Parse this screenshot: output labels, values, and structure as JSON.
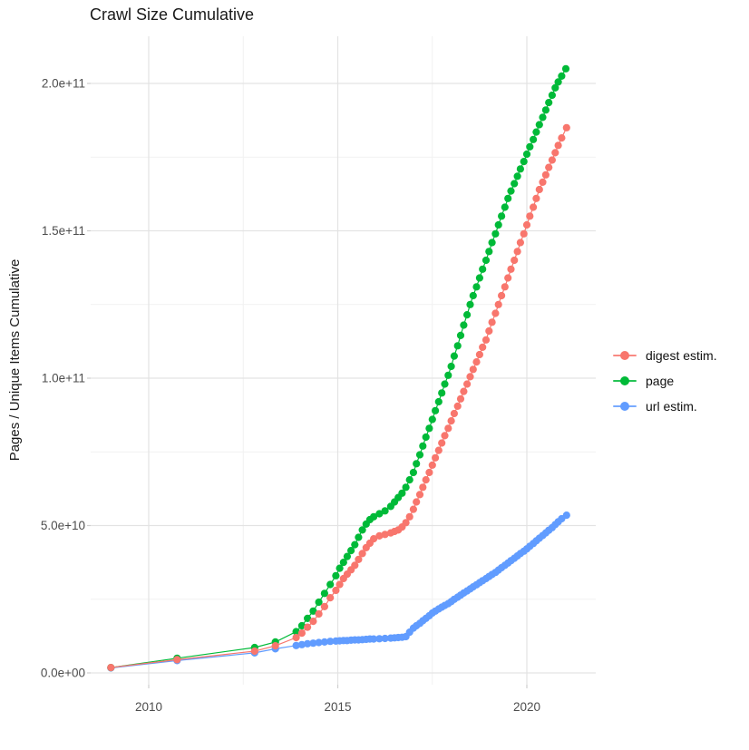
{
  "title": "Crawl Size Cumulative",
  "colors": {
    "digest": "#F8766D",
    "page": "#00BA38",
    "url": "#619CFF",
    "grid_major": "#E3E3E3",
    "grid_minor": "#F1F1F1",
    "tick_text": "#4d4d4d"
  },
  "axes": {
    "y_title": "Pages / Unique Items Cumulative",
    "x_ticks": [
      {
        "label": "2010",
        "year": 2010
      },
      {
        "label": "2015",
        "year": 2015
      },
      {
        "label": "2020",
        "year": 2020
      }
    ],
    "x_minor_years": [
      2012.5,
      2017.5
    ],
    "y_ticks": [
      {
        "label": "0.0e+00",
        "value_b": 0
      },
      {
        "label": "5.0e+10",
        "value_b": 50
      },
      {
        "label": "1.0e+11",
        "value_b": 100
      },
      {
        "label": "1.5e+11",
        "value_b": 150
      },
      {
        "label": "2.0e+11",
        "value_b": 200
      }
    ],
    "y_minor_b": [
      25,
      75,
      125,
      175
    ]
  },
  "legend": {
    "items": [
      {
        "label": "digest estim.",
        "color": "#F8766D"
      },
      {
        "label": "page",
        "color": "#00BA38"
      },
      {
        "label": "url estim.",
        "color": "#619CFF"
      }
    ]
  },
  "chart_data": {
    "type": "scatter",
    "title": "Crawl Size Cumulative",
    "xlabel": "",
    "ylabel": "Pages / Unique Items Cumulative",
    "x_range_years": [
      2008.4,
      2021.8
    ],
    "y_range": [
      0,
      220000000000.0
    ],
    "value_unit": "items, stored as billions (multiply by 1e9)",
    "grid": true,
    "legend_position": "right",
    "series": [
      {
        "name": "digest estim.",
        "color": "#F8766D",
        "points": [
          [
            2009.0,
            1.8
          ],
          [
            2010.75,
            4.5
          ],
          [
            2012.8,
            7.4
          ],
          [
            2013.35,
            9.2
          ],
          [
            2013.9,
            12.0
          ],
          [
            2014.05,
            13.5
          ],
          [
            2014.2,
            15.5
          ],
          [
            2014.35,
            17.5
          ],
          [
            2014.5,
            20.0
          ],
          [
            2014.65,
            22.5
          ],
          [
            2014.8,
            25.5
          ],
          [
            2014.95,
            28.0
          ],
          [
            2015.05,
            30.0
          ],
          [
            2015.15,
            32.0
          ],
          [
            2015.25,
            33.5
          ],
          [
            2015.35,
            35.0
          ],
          [
            2015.45,
            36.5
          ],
          [
            2015.55,
            38.5
          ],
          [
            2015.65,
            40.5
          ],
          [
            2015.75,
            42.5
          ],
          [
            2015.85,
            44.0
          ],
          [
            2015.95,
            45.5
          ],
          [
            2016.1,
            46.5
          ],
          [
            2016.25,
            47.0
          ],
          [
            2016.4,
            47.5
          ],
          [
            2016.5,
            48.0
          ],
          [
            2016.6,
            48.5
          ],
          [
            2016.7,
            49.5
          ],
          [
            2016.8,
            51.0
          ],
          [
            2016.9,
            53.0
          ],
          [
            2017.0,
            55.5
          ],
          [
            2017.08,
            58.0
          ],
          [
            2017.17,
            60.5
          ],
          [
            2017.25,
            63.0
          ],
          [
            2017.33,
            65.5
          ],
          [
            2017.42,
            68.0
          ],
          [
            2017.5,
            70.5
          ],
          [
            2017.58,
            73.0
          ],
          [
            2017.67,
            75.5
          ],
          [
            2017.75,
            78.0
          ],
          [
            2017.83,
            80.5
          ],
          [
            2017.92,
            83.0
          ],
          [
            2018.0,
            85.5
          ],
          [
            2018.08,
            88.0
          ],
          [
            2018.17,
            90.5
          ],
          [
            2018.25,
            93.0
          ],
          [
            2018.33,
            95.5
          ],
          [
            2018.42,
            98.0
          ],
          [
            2018.5,
            100.5
          ],
          [
            2018.58,
            103.0
          ],
          [
            2018.67,
            105.5
          ],
          [
            2018.75,
            108.0
          ],
          [
            2018.83,
            110.5
          ],
          [
            2018.92,
            113.0
          ],
          [
            2019.0,
            116.0
          ],
          [
            2019.08,
            119.0
          ],
          [
            2019.17,
            122.0
          ],
          [
            2019.25,
            125.0
          ],
          [
            2019.33,
            128.0
          ],
          [
            2019.42,
            131.0
          ],
          [
            2019.5,
            134.0
          ],
          [
            2019.58,
            137.0
          ],
          [
            2019.67,
            140.0
          ],
          [
            2019.75,
            143.0
          ],
          [
            2019.83,
            146.0
          ],
          [
            2019.92,
            149.0
          ],
          [
            2020.0,
            152.0
          ],
          [
            2020.08,
            155.0
          ],
          [
            2020.17,
            158.0
          ],
          [
            2020.25,
            161.0
          ],
          [
            2020.33,
            164.0
          ],
          [
            2020.42,
            166.5
          ],
          [
            2020.5,
            169.0
          ],
          [
            2020.58,
            171.5
          ],
          [
            2020.67,
            174.0
          ],
          [
            2020.75,
            176.5
          ],
          [
            2020.83,
            179.0
          ],
          [
            2020.92,
            181.5
          ],
          [
            2021.05,
            185.0
          ]
        ]
      },
      {
        "name": "page",
        "color": "#00BA38",
        "points": [
          [
            2009.0,
            1.8
          ],
          [
            2010.75,
            5.0
          ],
          [
            2012.8,
            8.6
          ],
          [
            2013.35,
            10.5
          ],
          [
            2013.9,
            14.0
          ],
          [
            2014.05,
            16.0
          ],
          [
            2014.2,
            18.5
          ],
          [
            2014.35,
            21.0
          ],
          [
            2014.5,
            24.0
          ],
          [
            2014.65,
            27.0
          ],
          [
            2014.8,
            30.0
          ],
          [
            2014.95,
            33.0
          ],
          [
            2015.05,
            35.5
          ],
          [
            2015.15,
            37.5
          ],
          [
            2015.25,
            39.5
          ],
          [
            2015.35,
            41.5
          ],
          [
            2015.45,
            43.5
          ],
          [
            2015.55,
            46.0
          ],
          [
            2015.65,
            48.5
          ],
          [
            2015.75,
            50.5
          ],
          [
            2015.85,
            52.0
          ],
          [
            2015.95,
            53.0
          ],
          [
            2016.1,
            54.0
          ],
          [
            2016.25,
            55.0
          ],
          [
            2016.4,
            56.5
          ],
          [
            2016.5,
            58.0
          ],
          [
            2016.6,
            59.5
          ],
          [
            2016.7,
            61.0
          ],
          [
            2016.8,
            63.0
          ],
          [
            2016.9,
            65.5
          ],
          [
            2017.0,
            68.0
          ],
          [
            2017.08,
            71.0
          ],
          [
            2017.17,
            74.0
          ],
          [
            2017.25,
            77.0
          ],
          [
            2017.33,
            80.0
          ],
          [
            2017.42,
            83.0
          ],
          [
            2017.5,
            86.0
          ],
          [
            2017.58,
            89.0
          ],
          [
            2017.67,
            92.0
          ],
          [
            2017.75,
            95.0
          ],
          [
            2017.83,
            98.0
          ],
          [
            2017.92,
            101.0
          ],
          [
            2018.0,
            104.0
          ],
          [
            2018.08,
            107.5
          ],
          [
            2018.17,
            111.0
          ],
          [
            2018.25,
            114.5
          ],
          [
            2018.33,
            118.0
          ],
          [
            2018.42,
            121.5
          ],
          [
            2018.5,
            125.0
          ],
          [
            2018.58,
            128.0
          ],
          [
            2018.67,
            131.0
          ],
          [
            2018.75,
            134.0
          ],
          [
            2018.83,
            137.0
          ],
          [
            2018.92,
            140.0
          ],
          [
            2019.0,
            143.0
          ],
          [
            2019.08,
            146.0
          ],
          [
            2019.17,
            149.0
          ],
          [
            2019.25,
            152.0
          ],
          [
            2019.33,
            155.0
          ],
          [
            2019.42,
            158.0
          ],
          [
            2019.5,
            161.0
          ],
          [
            2019.58,
            163.5
          ],
          [
            2019.67,
            166.0
          ],
          [
            2019.75,
            168.5
          ],
          [
            2019.83,
            171.0
          ],
          [
            2019.92,
            173.5
          ],
          [
            2020.0,
            176.0
          ],
          [
            2020.08,
            178.5
          ],
          [
            2020.17,
            181.0
          ],
          [
            2020.25,
            183.5
          ],
          [
            2020.33,
            186.0
          ],
          [
            2020.42,
            188.5
          ],
          [
            2020.5,
            191.0
          ],
          [
            2020.58,
            193.5
          ],
          [
            2020.67,
            196.0
          ],
          [
            2020.75,
            198.5
          ],
          [
            2020.83,
            200.5
          ],
          [
            2020.92,
            202.5
          ],
          [
            2021.03,
            205.0
          ]
        ]
      },
      {
        "name": "url estim.",
        "color": "#619CFF",
        "points": [
          [
            2009.0,
            1.7
          ],
          [
            2010.75,
            4.2
          ],
          [
            2012.8,
            6.8
          ],
          [
            2013.35,
            8.2
          ],
          [
            2013.9,
            9.3
          ],
          [
            2014.05,
            9.6
          ],
          [
            2014.2,
            9.9
          ],
          [
            2014.35,
            10.1
          ],
          [
            2014.5,
            10.3
          ],
          [
            2014.65,
            10.5
          ],
          [
            2014.8,
            10.7
          ],
          [
            2014.95,
            10.8
          ],
          [
            2015.05,
            10.9
          ],
          [
            2015.15,
            11.0
          ],
          [
            2015.25,
            11.0
          ],
          [
            2015.35,
            11.1
          ],
          [
            2015.45,
            11.2
          ],
          [
            2015.55,
            11.2
          ],
          [
            2015.65,
            11.3
          ],
          [
            2015.75,
            11.4
          ],
          [
            2015.85,
            11.5
          ],
          [
            2015.95,
            11.5
          ],
          [
            2016.1,
            11.6
          ],
          [
            2016.25,
            11.7
          ],
          [
            2016.4,
            11.8
          ],
          [
            2016.5,
            11.9
          ],
          [
            2016.6,
            12.0
          ],
          [
            2016.7,
            12.1
          ],
          [
            2016.8,
            12.3
          ],
          [
            2016.9,
            13.8
          ],
          [
            2017.0,
            15.2
          ],
          [
            2017.08,
            16.0
          ],
          [
            2017.17,
            16.8
          ],
          [
            2017.25,
            17.7
          ],
          [
            2017.33,
            18.5
          ],
          [
            2017.42,
            19.4
          ],
          [
            2017.5,
            20.3
          ],
          [
            2017.58,
            21.0
          ],
          [
            2017.67,
            21.7
          ],
          [
            2017.75,
            22.3
          ],
          [
            2017.83,
            22.9
          ],
          [
            2017.92,
            23.5
          ],
          [
            2018.0,
            24.2
          ],
          [
            2018.08,
            25.0
          ],
          [
            2018.17,
            25.7
          ],
          [
            2018.25,
            26.4
          ],
          [
            2018.33,
            27.1
          ],
          [
            2018.42,
            27.8
          ],
          [
            2018.5,
            28.5
          ],
          [
            2018.58,
            29.2
          ],
          [
            2018.67,
            29.9
          ],
          [
            2018.75,
            30.6
          ],
          [
            2018.83,
            31.3
          ],
          [
            2018.92,
            32.0
          ],
          [
            2019.0,
            32.7
          ],
          [
            2019.08,
            33.4
          ],
          [
            2019.17,
            34.1
          ],
          [
            2019.25,
            34.9
          ],
          [
            2019.33,
            35.7
          ],
          [
            2019.42,
            36.5
          ],
          [
            2019.5,
            37.3
          ],
          [
            2019.58,
            38.1
          ],
          [
            2019.67,
            38.9
          ],
          [
            2019.75,
            39.7
          ],
          [
            2019.83,
            40.5
          ],
          [
            2019.92,
            41.3
          ],
          [
            2020.0,
            42.1
          ],
          [
            2020.08,
            43.0
          ],
          [
            2020.17,
            43.9
          ],
          [
            2020.25,
            44.8
          ],
          [
            2020.33,
            45.7
          ],
          [
            2020.42,
            46.6
          ],
          [
            2020.5,
            47.5
          ],
          [
            2020.58,
            48.4
          ],
          [
            2020.67,
            49.3
          ],
          [
            2020.75,
            50.3
          ],
          [
            2020.83,
            51.3
          ],
          [
            2020.92,
            52.3
          ],
          [
            2021.05,
            53.5
          ]
        ]
      }
    ]
  }
}
